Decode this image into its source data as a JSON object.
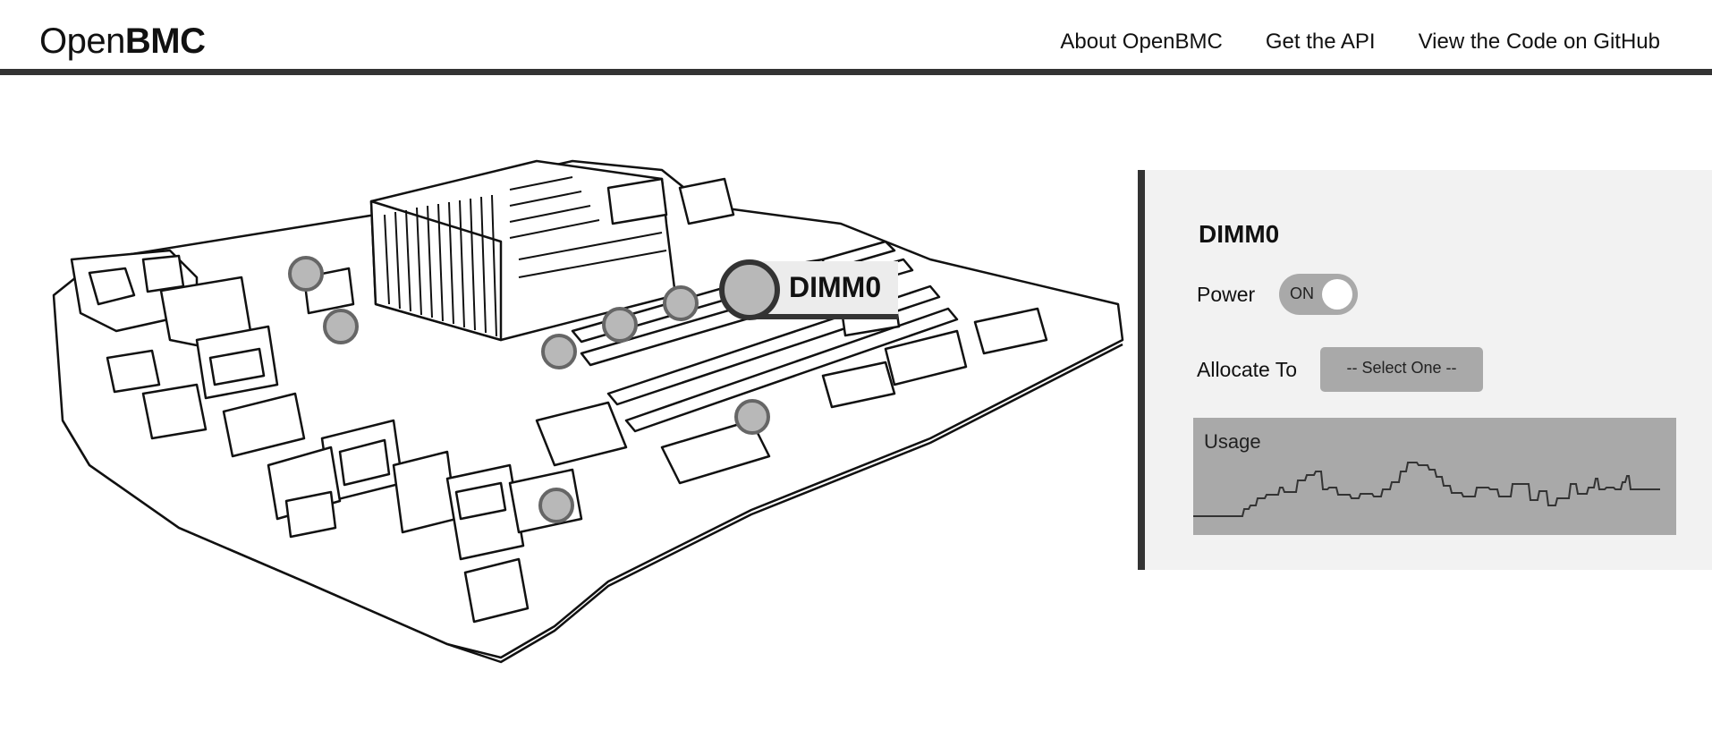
{
  "header": {
    "logo_light": "Open",
    "logo_bold": "BMC",
    "nav": [
      {
        "label": "About OpenBMC"
      },
      {
        "label": "Get the API"
      },
      {
        "label": "View the Code on GitHub"
      }
    ]
  },
  "board": {
    "hotspot_label": "DIMM0"
  },
  "panel": {
    "title": "DIMM0",
    "power_label": "Power",
    "power_state": "ON",
    "allocate_label": "Allocate To",
    "allocate_value": "-- Select One --",
    "usage_label": "Usage"
  },
  "colors": {
    "accent_dark": "#333333",
    "panel_bg": "#f2f2f2",
    "control_gray": "#a9a9a9",
    "hotspot_gray": "#b8b8b8"
  }
}
